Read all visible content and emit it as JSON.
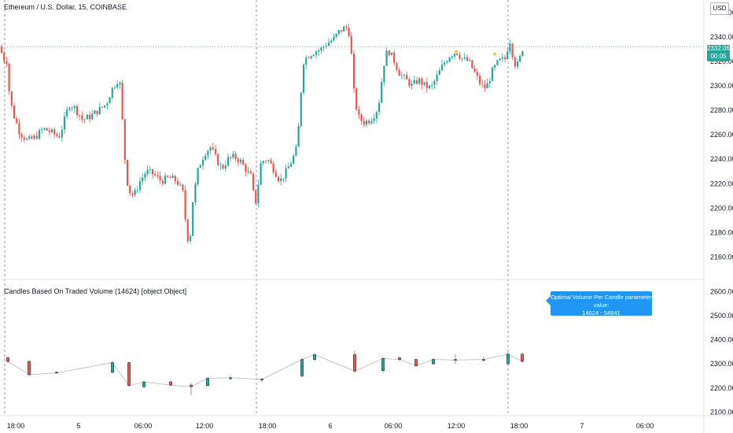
{
  "header": {
    "symbol_title": "Ethereum / U.S. Dollar, 15, COINBASE",
    "currency": "USD",
    "last_price": "2332.06",
    "countdown": "00:05"
  },
  "indicator": {
    "title": "Candles Based On Traded Volume (14624) [object Object]",
    "tooltip_line1": "Optimal Volume Per Candle parameter value:",
    "tooltip_line2": "14624 - 54841"
  },
  "colors": {
    "up": "#26a69a",
    "down": "#ef5350",
    "accent": "#2196f3",
    "session_line": "#9598a1",
    "dot": "#f5c243"
  },
  "chart_data": [
    {
      "type": "candlestick",
      "title": "Ethereum / U.S. Dollar, 15, COINBASE",
      "x_ticks": [
        "18:00",
        "5",
        "06:00",
        "12:00",
        "18:00",
        "6",
        "06:00",
        "12:00",
        "18:00",
        "7",
        "06:00"
      ],
      "y_ticks": [
        "2160.00",
        "2180.00",
        "2200.00",
        "2220.00",
        "2240.00",
        "2260.00",
        "2280.00",
        "2300.00",
        "2320.00",
        "2340.00",
        "2360.00"
      ],
      "ylim": [
        2150,
        2365
      ],
      "last_price": 2332.06,
      "close_path": [
        [
          0,
          2332
        ],
        [
          4,
          2322
        ],
        [
          10,
          2320
        ],
        [
          12,
          2290
        ],
        [
          18,
          2275
        ],
        [
          25,
          2262
        ],
        [
          35,
          2255
        ],
        [
          45,
          2258
        ],
        [
          55,
          2265
        ],
        [
          65,
          2262
        ],
        [
          75,
          2258
        ],
        [
          80,
          2268
        ],
        [
          88,
          2285
        ],
        [
          95,
          2282
        ],
        [
          105,
          2272
        ],
        [
          115,
          2275
        ],
        [
          125,
          2280
        ],
        [
          135,
          2285
        ],
        [
          143,
          2298
        ],
        [
          150,
          2305
        ],
        [
          153,
          2300
        ],
        [
          158,
          2245
        ],
        [
          163,
          2215
        ],
        [
          170,
          2210
        ],
        [
          178,
          2222
        ],
        [
          186,
          2230
        ],
        [
          195,
          2228
        ],
        [
          205,
          2222
        ],
        [
          215,
          2225
        ],
        [
          225,
          2222
        ],
        [
          233,
          2212
        ],
        [
          237,
          2180
        ],
        [
          241,
          2170
        ],
        [
          245,
          2205
        ],
        [
          252,
          2232
        ],
        [
          260,
          2245
        ],
        [
          268,
          2250
        ],
        [
          275,
          2240
        ],
        [
          282,
          2232
        ],
        [
          290,
          2240
        ],
        [
          298,
          2242
        ],
        [
          306,
          2238
        ],
        [
          314,
          2230
        ],
        [
          320,
          2225
        ],
        [
          324,
          2200
        ],
        [
          328,
          2218
        ],
        [
          332,
          2238
        ],
        [
          340,
          2240
        ],
        [
          348,
          2232
        ],
        [
          356,
          2222
        ],
        [
          364,
          2230
        ],
        [
          372,
          2240
        ],
        [
          378,
          2250
        ],
        [
          382,
          2290
        ],
        [
          386,
          2320
        ],
        [
          392,
          2325
        ],
        [
          400,
          2328
        ],
        [
          408,
          2330
        ],
        [
          416,
          2335
        ],
        [
          424,
          2338
        ],
        [
          432,
          2345
        ],
        [
          440,
          2348
        ],
        [
          445,
          2342
        ],
        [
          450,
          2295
        ],
        [
          455,
          2275
        ],
        [
          462,
          2270
        ],
        [
          470,
          2272
        ],
        [
          478,
          2278
        ],
        [
          483,
          2290
        ],
        [
          487,
          2315
        ],
        [
          493,
          2330
        ],
        [
          500,
          2322
        ],
        [
          508,
          2310
        ],
        [
          516,
          2305
        ],
        [
          524,
          2300
        ],
        [
          532,
          2305
        ],
        [
          540,
          2300
        ],
        [
          548,
          2298
        ],
        [
          556,
          2308
        ],
        [
          564,
          2318
        ],
        [
          572,
          2325
        ],
        [
          580,
          2328
        ],
        [
          588,
          2322
        ],
        [
          596,
          2320
        ],
        [
          604,
          2310
        ],
        [
          612,
          2300
        ],
        [
          618,
          2298
        ],
        [
          626,
          2312
        ],
        [
          634,
          2320
        ],
        [
          642,
          2322
        ],
        [
          648,
          2338
        ],
        [
          652,
          2325
        ],
        [
          656,
          2315
        ],
        [
          660,
          2320
        ],
        [
          665,
          2332
        ]
      ],
      "markers": [
        {
          "x_index": 580,
          "y": 2328
        },
        {
          "x_index": 629,
          "y": 2326
        }
      ]
    },
    {
      "type": "candlestick",
      "title": "Candles Based On Traded Volume (14624) [object Object]",
      "y_ticks": [
        "2100.00",
        "2200.00",
        "2300.00",
        "2400.00",
        "2500.00",
        "2600.00"
      ],
      "ylim": [
        2085,
        2640
      ],
      "candles": [
        {
          "x": 10,
          "o": 2325,
          "c": 2310,
          "h": 2332,
          "l": 2305
        },
        {
          "x": 37,
          "o": 2310,
          "c": 2255,
          "h": 2315,
          "l": 2250
        },
        {
          "x": 72,
          "o": 2265,
          "c": 2262,
          "h": 2270,
          "l": 2258
        },
        {
          "x": 143,
          "o": 2265,
          "c": 2305,
          "h": 2312,
          "l": 2260
        },
        {
          "x": 164,
          "o": 2305,
          "c": 2210,
          "h": 2310,
          "l": 2205
        },
        {
          "x": 183,
          "o": 2205,
          "c": 2225,
          "h": 2230,
          "l": 2200
        },
        {
          "x": 217,
          "o": 2225,
          "c": 2212,
          "h": 2232,
          "l": 2208
        },
        {
          "x": 243,
          "o": 2212,
          "c": 2205,
          "h": 2220,
          "l": 2170
        },
        {
          "x": 264,
          "o": 2210,
          "c": 2240,
          "h": 2245,
          "l": 2205
        },
        {
          "x": 293,
          "o": 2240,
          "c": 2242,
          "h": 2252,
          "l": 2232
        },
        {
          "x": 333,
          "o": 2234,
          "c": 2236,
          "h": 2242,
          "l": 2225
        },
        {
          "x": 384,
          "o": 2250,
          "c": 2318,
          "h": 2325,
          "l": 2245
        },
        {
          "x": 400,
          "o": 2318,
          "c": 2338,
          "h": 2345,
          "l": 2312
        },
        {
          "x": 451,
          "o": 2338,
          "c": 2270,
          "h": 2355,
          "l": 2262
        },
        {
          "x": 487,
          "o": 2272,
          "c": 2322,
          "h": 2328,
          "l": 2262
        },
        {
          "x": 508,
          "o": 2325,
          "c": 2318,
          "h": 2330,
          "l": 2312
        },
        {
          "x": 529,
          "o": 2318,
          "c": 2292,
          "h": 2322,
          "l": 2288
        },
        {
          "x": 551,
          "o": 2300,
          "c": 2318,
          "h": 2324,
          "l": 2296
        },
        {
          "x": 579,
          "o": 2318,
          "c": 2316,
          "h": 2340,
          "l": 2300
        },
        {
          "x": 615,
          "o": 2316,
          "c": 2318,
          "h": 2330,
          "l": 2308
        },
        {
          "x": 646,
          "o": 2300,
          "c": 2340,
          "h": 2348,
          "l": 2298
        },
        {
          "x": 664,
          "o": 2340,
          "c": 2310,
          "h": 2348,
          "l": 2305
        }
      ]
    }
  ]
}
